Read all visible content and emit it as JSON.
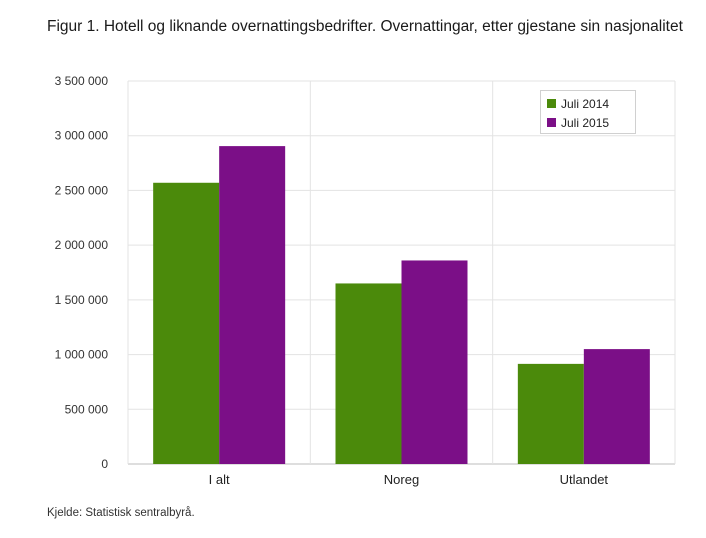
{
  "title": "Figur 1. Hotell og liknande overnattingsbedrifter. Overnattingar, etter gjestane sin nasjonalitet",
  "source": "Kjelde: Statistisk sentralbyrå.",
  "colors": {
    "juli_2014": "#4b8a0b",
    "juli_2015": "#7b0f87"
  },
  "legend": {
    "items": [
      "Juli 2014",
      "Juli 2015"
    ]
  },
  "chart_data": {
    "type": "bar",
    "title": "Figur 1. Hotell og liknande overnattingsbedrifter. Overnattingar, etter gjestane sin nasjonalitet",
    "categories": [
      "I alt",
      "Noreg",
      "Utlandet"
    ],
    "series": [
      {
        "name": "Juli 2014",
        "values": [
          2570000,
          1650000,
          915000
        ]
      },
      {
        "name": "Juli 2015",
        "values": [
          2905000,
          1860000,
          1050000
        ]
      }
    ],
    "ylim": [
      0,
      3500000
    ],
    "yticks": [
      0,
      500000,
      1000000,
      1500000,
      2000000,
      2500000,
      3000000,
      3500000
    ],
    "ytick_labels": [
      "0",
      "500 000",
      "1 000 000",
      "1 500 000",
      "2 000 000",
      "2 500 000",
      "3 000 000",
      "3 500 000"
    ],
    "grid": true,
    "legend_position": "top-right"
  }
}
